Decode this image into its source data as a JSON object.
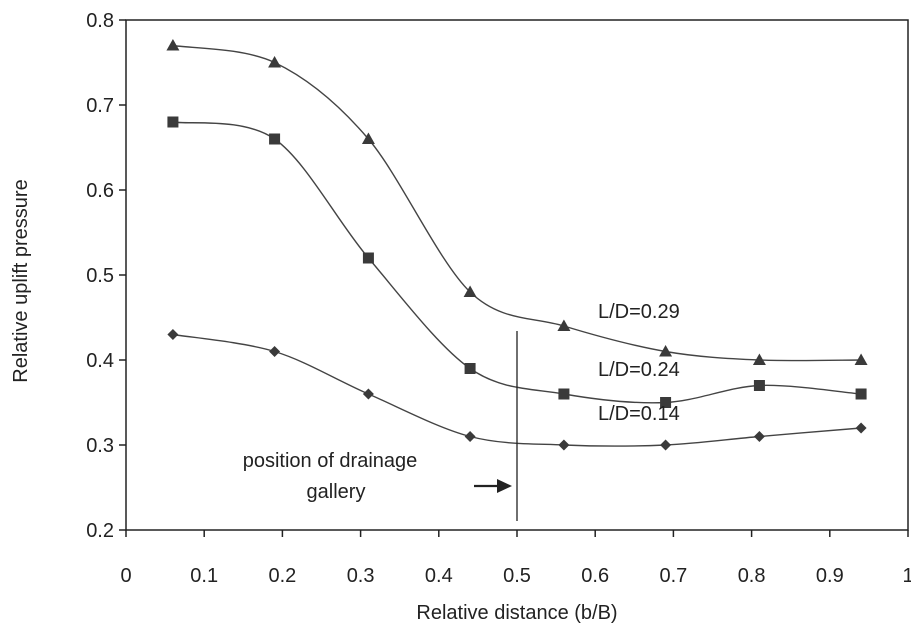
{
  "chart_data": {
    "type": "line",
    "xlabel": "Relative distance (b/B)",
    "ylabel": "Relative uplift pressure",
    "xlim": [
      0,
      1
    ],
    "ylim": [
      0.2,
      0.8
    ],
    "x_ticks": [
      "0",
      "0.1",
      "0.2",
      "0.3",
      "0.4",
      "0.5",
      "0.6",
      "0.7",
      "0.8",
      "0.9",
      "1"
    ],
    "y_ticks": [
      "0.2",
      "0.3",
      "0.4",
      "0.5",
      "0.6",
      "0.7",
      "0.8"
    ],
    "x": [
      0.06,
      0.19,
      0.31,
      0.44,
      0.56,
      0.69,
      0.81,
      0.94
    ],
    "series": [
      {
        "name": "L/D=0.29",
        "marker": "triangle",
        "values": [
          0.77,
          0.75,
          0.66,
          0.48,
          0.44,
          0.41,
          0.4,
          0.4
        ]
      },
      {
        "name": "L/D=0.24",
        "marker": "square",
        "values": [
          0.68,
          0.66,
          0.52,
          0.39,
          0.36,
          0.35,
          0.37,
          0.36
        ]
      },
      {
        "name": "L/D=0.14",
        "marker": "diamond",
        "values": [
          0.43,
          0.41,
          0.36,
          0.31,
          0.3,
          0.3,
          0.31,
          0.32
        ]
      }
    ],
    "annotation": {
      "text_lines": [
        "position of drainage",
        "gallery"
      ],
      "x": 0.5
    },
    "grid": false,
    "colors": {
      "line": "#444444",
      "marker": "#3a3a3a",
      "axis": "#222222"
    }
  }
}
